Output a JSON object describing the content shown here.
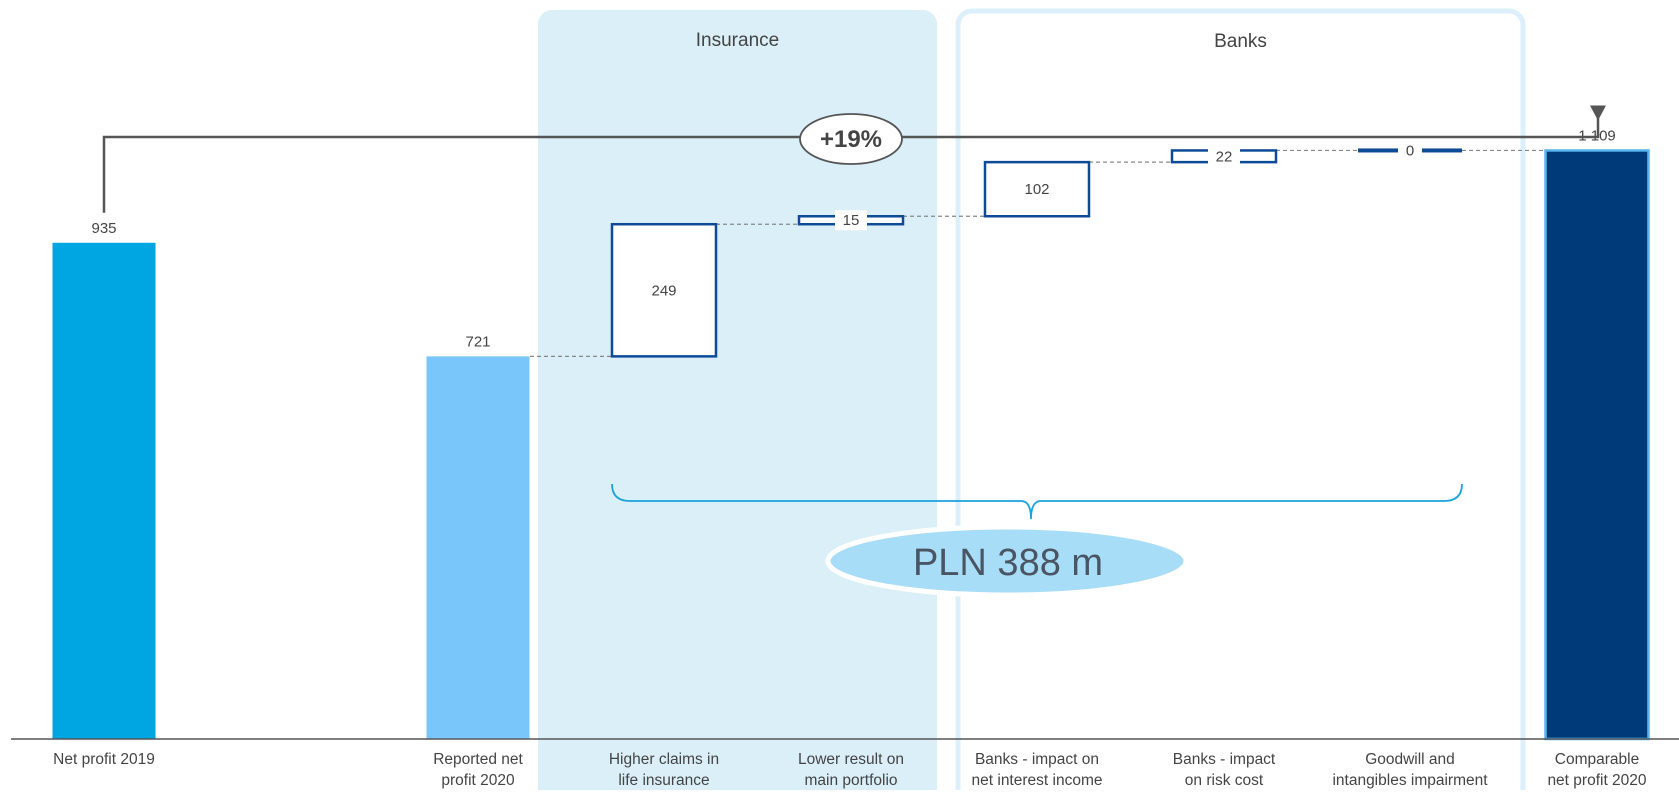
{
  "chart_data": {
    "type": "waterfall",
    "unit_note": "PLN m",
    "categories": [
      "Net profit 2019",
      "Reported net profit 2020",
      "Higher claims in life insurance",
      "Lower result on main portfolio",
      "Banks - impact on net interest income",
      "Banks - impact on risk cost",
      "Goodwill and intangibles impairment",
      "Comparable net profit 2020"
    ],
    "category_labels": [
      [
        "Net profit 2019"
      ],
      [
        "Reported net",
        "profit 2020"
      ],
      [
        "Higher claims in",
        "life insurance"
      ],
      [
        "Lower result on",
        "main portfolio"
      ],
      [
        "Banks - impact on",
        "net interest income"
      ],
      [
        "Banks - impact",
        "on risk cost"
      ],
      [
        "Goodwill and",
        "intangibles impairment"
      ],
      [
        "Comparable",
        "net profit 2020"
      ]
    ],
    "bars": [
      {
        "kind": "total",
        "value": 935,
        "label": "935"
      },
      {
        "kind": "total",
        "value": 721,
        "label": "721"
      },
      {
        "kind": "delta",
        "value": 249,
        "label": "249"
      },
      {
        "kind": "delta",
        "value": 15,
        "label": "15"
      },
      {
        "kind": "delta",
        "value": 102,
        "label": "102"
      },
      {
        "kind": "delta",
        "value": 22,
        "label": "22"
      },
      {
        "kind": "delta",
        "value": 0,
        "label": "0"
      },
      {
        "kind": "total",
        "value": 1109,
        "label": "1 109"
      }
    ],
    "groups": [
      {
        "label": "Insurance",
        "from": 2,
        "to": 3
      },
      {
        "label": "Banks",
        "from": 4,
        "to": 6
      }
    ],
    "change_annotation": "+19%",
    "brace_total": "PLN 388 m",
    "ylim": [
      0,
      1160
    ],
    "colors": {
      "net_2019": "#00a6e2",
      "reported_2020": "#79c6fb",
      "comparable_2020": "#003a79",
      "delta_outline": "#0d4b96",
      "insurance_bg": "#daeff8",
      "banks_border": "#dbf0fa",
      "brace": "#1aa3d9",
      "pill": "#a8ddf8",
      "axis": "#555555",
      "connector": "#888888",
      "text": "#444444"
    }
  }
}
